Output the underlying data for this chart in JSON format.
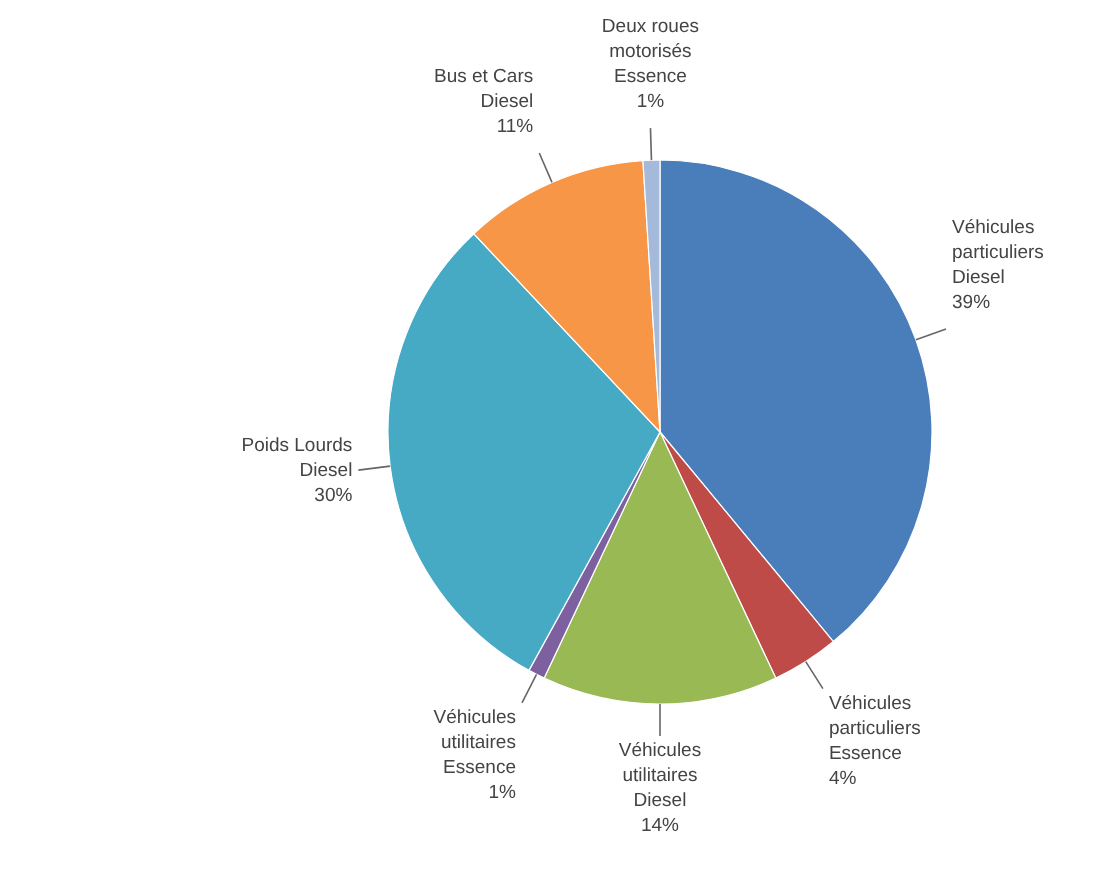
{
  "chart_data": {
    "type": "pie",
    "categories": [
      "Véhicules particuliers Diesel",
      "Véhicules particuliers Essence",
      "Véhicules utilitaires Diesel",
      "Véhicules utilitaires Essence",
      "Poids Lourds Diesel",
      "Bus et Cars Diesel",
      "Deux roues motorisés Essence"
    ],
    "values": [
      39,
      4,
      14,
      1,
      30,
      11,
      1
    ],
    "value_labels": [
      "39%",
      "4%",
      "14%",
      "1%",
      "30%",
      "11%",
      "1%"
    ],
    "colors": [
      "#4a7ebb",
      "#be4b48",
      "#98b954",
      "#7d60a0",
      "#46aac5",
      "#f79646",
      "#a5b9da"
    ]
  }
}
